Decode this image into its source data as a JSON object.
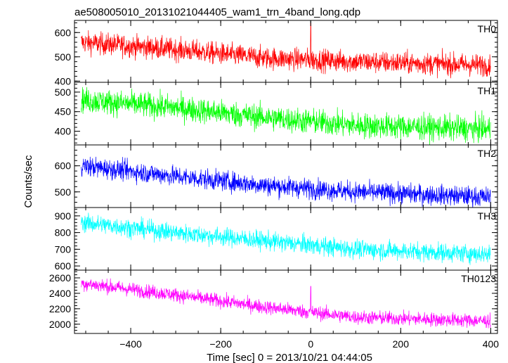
{
  "title": "ae508005010_20131021044405_wam1_trn_4band_long.qdp",
  "xlabel": "Time [sec] 0 = 2013/10/21 04:44:05",
  "ylabel": "Counts/sec",
  "chart_data": {
    "type": "line",
    "title": "ae508005010_20131021044405_wam1_trn_4band_long.qdp",
    "xlabel": "Time [sec] 0 = 2013/10/21 04:44:05",
    "ylabel": "Counts/sec",
    "xlim": [
      -525,
      415
    ],
    "x_ticks": [
      -400,
      -200,
      0,
      200,
      400
    ],
    "x_tick_labels": [
      "−400",
      "−200",
      "0",
      "200",
      "400"
    ],
    "x_start": -510,
    "x_end": 400,
    "grid": false,
    "panels": [
      {
        "name": "TH0",
        "color": "#ff0000",
        "ylim": [
          395,
          650
        ],
        "y_ticks": [
          400,
          500,
          600
        ],
        "trend": [
          [
            -510,
            560
          ],
          [
            -300,
            530
          ],
          [
            -100,
            495
          ],
          [
            100,
            480
          ],
          [
            400,
            465
          ]
        ],
        "noise": 45,
        "spikes": [
          {
            "x": 0,
            "y": 640
          }
        ]
      },
      {
        "name": "TH1",
        "color": "#00ff00",
        "ylim": [
          365,
          525
        ],
        "y_ticks": [
          400,
          450,
          500
        ],
        "trend": [
          [
            -510,
            480
          ],
          [
            -300,
            460
          ],
          [
            -100,
            435
          ],
          [
            100,
            415
          ],
          [
            400,
            405
          ]
        ],
        "noise": 32,
        "spikes": []
      },
      {
        "name": "TH2",
        "color": "#0000ff",
        "ylim": [
          440,
          680
        ],
        "y_ticks": [
          500,
          600
        ],
        "trend": [
          [
            -510,
            600
          ],
          [
            -300,
            560
          ],
          [
            -100,
            525
          ],
          [
            100,
            500
          ],
          [
            400,
            480
          ]
        ],
        "noise": 38,
        "spikes": []
      },
      {
        "name": "TH3",
        "color": "#00ffff",
        "ylim": [
          575,
          950
        ],
        "y_ticks": [
          600,
          700,
          800,
          900
        ],
        "trend": [
          [
            -510,
            860
          ],
          [
            -300,
            800
          ],
          [
            -100,
            750
          ],
          [
            100,
            700
          ],
          [
            400,
            670
          ]
        ],
        "noise": 55,
        "spikes": []
      },
      {
        "name": "TH0123",
        "color": "#ff00ff",
        "ylim": [
          1880,
          2700
        ],
        "y_ticks": [
          2000,
          2200,
          2400,
          2600
        ],
        "trend": [
          [
            -510,
            2530
          ],
          [
            -300,
            2380
          ],
          [
            -100,
            2220
          ],
          [
            100,
            2090
          ],
          [
            400,
            2040
          ]
        ],
        "noise": 90,
        "spikes": [
          {
            "x": 0,
            "y": 2490
          }
        ]
      }
    ]
  }
}
